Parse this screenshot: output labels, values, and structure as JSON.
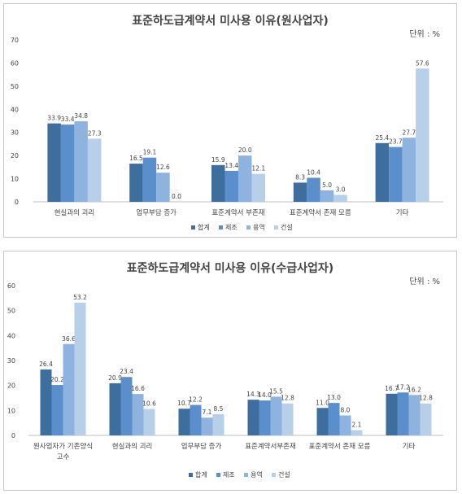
{
  "chart_data": [
    {
      "type": "bar",
      "title": "표준하도급계약서 미사용 이유(원사업자)",
      "unit": "단위 : %",
      "xlabel": "",
      "ylabel": "",
      "ylim": [
        0,
        70
      ],
      "yticks": [
        "0",
        "10",
        "20",
        "30",
        "40",
        "50",
        "60",
        "70"
      ],
      "categories": [
        [
          "현실과의 괴리"
        ],
        [
          "업무부담 증가"
        ],
        [
          "표준계약서 부존재"
        ],
        [
          "표준계약서 존재 모름"
        ],
        [
          "기타"
        ]
      ],
      "series": [
        {
          "name": "합계",
          "values": [
            33.9,
            16.5,
            15.9,
            8.3,
            25.4
          ],
          "labels": [
            "33.9",
            "16.5",
            "15.9",
            "8.3",
            "25.4"
          ]
        },
        {
          "name": "제조",
          "values": [
            33.4,
            19.1,
            13.4,
            10.4,
            23.7
          ],
          "labels": [
            "33.4",
            "19.1",
            "13.4",
            "10.4",
            "23.7"
          ]
        },
        {
          "name": "용역",
          "values": [
            34.8,
            12.6,
            20.0,
            5.0,
            27.7
          ],
          "labels": [
            "34.8",
            "12.6",
            "20.0",
            "5.0",
            "27.7"
          ]
        },
        {
          "name": "건설",
          "values": [
            27.3,
            0.0,
            12.1,
            3.0,
            57.6
          ],
          "labels": [
            "27.3",
            "0.0",
            "12.1",
            "3.0",
            "57.6"
          ]
        }
      ],
      "grid": false,
      "legend": "bottom"
    },
    {
      "type": "bar",
      "title": "표준하도급계약서 미사용 이유(수급사업자)",
      "unit": "단위 : %",
      "xlabel": "",
      "ylabel": "",
      "ylim": [
        0,
        60
      ],
      "yticks": [
        "0",
        "10",
        "20",
        "30",
        "40",
        "50",
        "60"
      ],
      "categories": [
        [
          "원사업자가 기존양식",
          "고수"
        ],
        [
          "현실과의 괴리"
        ],
        [
          "업무부담 증가"
        ],
        [
          "표준계약서부존재"
        ],
        [
          "표준계약서 존재 모름"
        ],
        [
          "기타"
        ]
      ],
      "series": [
        {
          "name": "합계",
          "values": [
            26.4,
            20.9,
            10.7,
            14.3,
            11.0,
            16.7
          ],
          "labels": [
            "26.4",
            "20.9",
            "10.7",
            "14.3",
            "11.0",
            "16.7"
          ]
        },
        {
          "name": "제조",
          "values": [
            20.2,
            23.4,
            12.2,
            14.0,
            13.0,
            17.2
          ],
          "labels": [
            "20.2",
            "23.4",
            "12.2",
            "14.0",
            "13.0",
            "17.2"
          ]
        },
        {
          "name": "용역",
          "values": [
            36.6,
            16.6,
            7.1,
            15.5,
            8.0,
            16.2
          ],
          "labels": [
            "36.6",
            "16.6",
            "7.1",
            "15.5",
            "8.0",
            "16.2"
          ]
        },
        {
          "name": "건설",
          "values": [
            53.2,
            10.6,
            8.5,
            12.8,
            2.1,
            12.8
          ],
          "labels": [
            "53.2",
            "10.6",
            "8.5",
            "12.8",
            "2.1",
            "12.8"
          ]
        }
      ],
      "grid": false,
      "legend": "bottom"
    }
  ],
  "colors": {
    "합계": "#3e6e9e",
    "제조": "#5b8fcb",
    "용역": "#8eb3de",
    "건설": "#b8cfe9",
    "axis": "#bfbfbf",
    "text": "#444444"
  }
}
